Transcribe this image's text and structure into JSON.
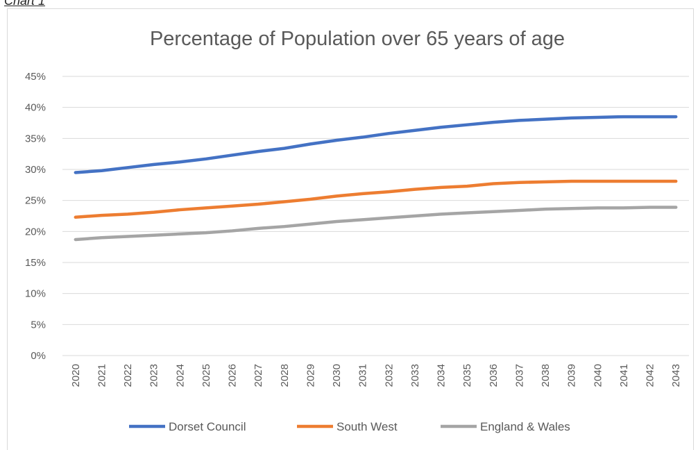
{
  "caption": "Chart 1",
  "chart_data": {
    "type": "line",
    "title": "Percentage of Population over 65 years of age",
    "xlabel": "",
    "ylabel": "",
    "ylim": [
      0,
      45
    ],
    "y_ticks": [
      0,
      5,
      10,
      15,
      20,
      25,
      30,
      35,
      40,
      45
    ],
    "y_tick_labels": [
      "0%",
      "5%",
      "10%",
      "15%",
      "20%",
      "25%",
      "30%",
      "35%",
      "40%",
      "45%"
    ],
    "x": [
      "2020",
      "2021",
      "2022",
      "2023",
      "2024",
      "2025",
      "2026",
      "2027",
      "2028",
      "2029",
      "2030",
      "2031",
      "2032",
      "2033",
      "2034",
      "2035",
      "2036",
      "2037",
      "2038",
      "2039",
      "2040",
      "2041",
      "2042",
      "2043"
    ],
    "grid": true,
    "legend_position": "bottom",
    "series": [
      {
        "name": "Dorset Council",
        "color": "#4472c4",
        "values": [
          29.5,
          29.8,
          30.3,
          30.8,
          31.2,
          31.7,
          32.3,
          32.9,
          33.4,
          34.1,
          34.7,
          35.2,
          35.8,
          36.3,
          36.8,
          37.2,
          37.6,
          37.9,
          38.1,
          38.3,
          38.4,
          38.5,
          38.5,
          38.5
        ]
      },
      {
        "name": "South West",
        "color": "#ed7d31",
        "values": [
          22.3,
          22.6,
          22.8,
          23.1,
          23.5,
          23.8,
          24.1,
          24.4,
          24.8,
          25.2,
          25.7,
          26.1,
          26.4,
          26.8,
          27.1,
          27.3,
          27.7,
          27.9,
          28.0,
          28.1,
          28.1,
          28.1,
          28.1,
          28.1
        ]
      },
      {
        "name": "England & Wales",
        "color": "#a5a5a5",
        "values": [
          18.7,
          19.0,
          19.2,
          19.4,
          19.6,
          19.8,
          20.1,
          20.5,
          20.8,
          21.2,
          21.6,
          21.9,
          22.2,
          22.5,
          22.8,
          23.0,
          23.2,
          23.4,
          23.6,
          23.7,
          23.8,
          23.8,
          23.9,
          23.9
        ]
      }
    ]
  }
}
